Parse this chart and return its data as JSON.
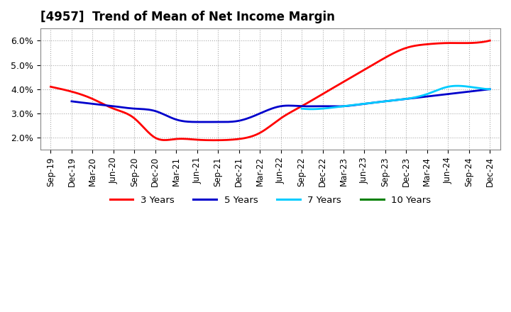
{
  "title": "[4957]  Trend of Mean of Net Income Margin",
  "title_fontsize": 12,
  "background_color": "#ffffff",
  "plot_background_color": "#ffffff",
  "grid_color": "#aaaaaa",
  "ylim": [
    0.015,
    0.065
  ],
  "yticks": [
    0.02,
    0.03,
    0.04,
    0.05,
    0.06
  ],
  "ytick_labels": [
    "2.0%",
    "3.0%",
    "4.0%",
    "5.0%",
    "6.0%"
  ],
  "x_labels": [
    "Sep-19",
    "Dec-19",
    "Mar-20",
    "Jun-20",
    "Sep-20",
    "Dec-20",
    "Mar-21",
    "Jun-21",
    "Sep-21",
    "Dec-21",
    "Mar-22",
    "Jun-22",
    "Sep-22",
    "Dec-22",
    "Mar-23",
    "Jun-23",
    "Sep-23",
    "Dec-23",
    "Mar-24",
    "Jun-24",
    "Sep-24",
    "Dec-24"
  ],
  "series": {
    "3 Years": {
      "color": "#ff0000",
      "linewidth": 2.0,
      "values": [
        0.041,
        0.039,
        0.036,
        0.032,
        0.028,
        0.02,
        0.0195,
        0.0192,
        0.019,
        0.0195,
        0.022,
        0.028,
        0.033,
        0.038,
        0.043,
        0.048,
        0.053,
        0.057,
        0.0585,
        0.059,
        0.059,
        0.06
      ]
    },
    "5 Years": {
      "color": "#0000cc",
      "linewidth": 2.0,
      "values": [
        null,
        0.035,
        0.034,
        0.033,
        0.032,
        0.031,
        0.0275,
        0.0265,
        0.0265,
        0.027,
        0.03,
        0.033,
        0.033,
        0.033,
        0.033,
        0.034,
        0.035,
        0.036,
        0.037,
        0.038,
        0.039,
        0.04
      ]
    },
    "7 Years": {
      "color": "#00ccff",
      "linewidth": 2.0,
      "values": [
        null,
        null,
        null,
        null,
        null,
        null,
        null,
        null,
        null,
        null,
        null,
        null,
        0.032,
        0.032,
        0.033,
        0.034,
        0.035,
        0.036,
        0.038,
        0.041,
        0.041,
        0.04
      ]
    },
    "10 Years": {
      "color": "#008000",
      "linewidth": 2.0,
      "values": [
        null,
        null,
        null,
        null,
        null,
        null,
        null,
        null,
        null,
        null,
        null,
        null,
        null,
        null,
        null,
        null,
        null,
        null,
        null,
        null,
        null,
        null
      ]
    }
  },
  "legend_order": [
    "3 Years",
    "5 Years",
    "7 Years",
    "10 Years"
  ],
  "legend_colors": [
    "#ff0000",
    "#0000cc",
    "#00ccff",
    "#008000"
  ]
}
